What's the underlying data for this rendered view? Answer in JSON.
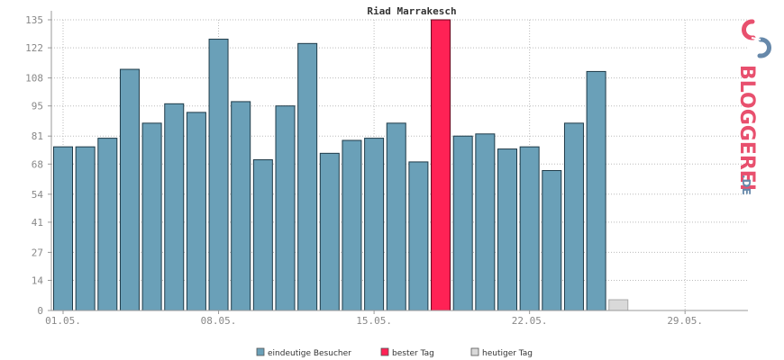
{
  "chart_data": {
    "type": "bar",
    "title": "Riad Marrakesch",
    "xlabel": "",
    "ylabel": "",
    "ylim": [
      0,
      135
    ],
    "y_ticks": [
      0,
      14,
      27,
      41,
      54,
      68,
      81,
      95,
      108,
      122,
      135
    ],
    "x_tick_labels": [
      "01.05.",
      "08.05.",
      "15.05.",
      "22.05.",
      "29.05."
    ],
    "x_tick_day_indices": [
      0,
      7,
      14,
      21,
      28
    ],
    "days_in_month": 31,
    "grid": true,
    "legend_position": "bottom",
    "series": [
      {
        "name": "eindeutige Besucher",
        "color": "#6aa0b8",
        "values": [
          76,
          76,
          80,
          112,
          87,
          96,
          92,
          126,
          97,
          70,
          95,
          124,
          73,
          79,
          80,
          87,
          69,
          null,
          81,
          82,
          75,
          76,
          65,
          87,
          111
        ]
      },
      {
        "name": "bester Tag",
        "color": "#ff2255",
        "day_index": 17,
        "value": 135
      },
      {
        "name": "heutiger Tag",
        "color": "#d9d9d9",
        "day_index": 25,
        "value": 5
      }
    ]
  },
  "logo": {
    "text": "BLOGGEREI",
    "suffix": ".DE",
    "color_main": "#e8506e",
    "color_suffix": "#6688aa"
  }
}
